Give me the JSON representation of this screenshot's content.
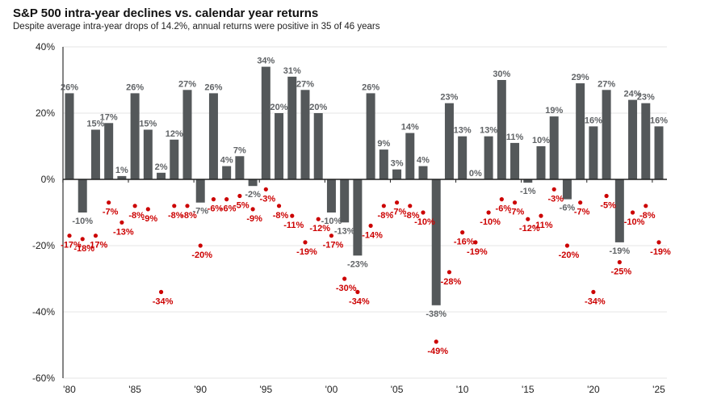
{
  "chart_data": {
    "type": "bar",
    "title": "S&P 500 intra-year declines vs. calendar year returns",
    "subtitle": "Despite average intra-year drops of 14.2%, annual returns were positive in 35 of 46 years",
    "x": [
      1980,
      1981,
      1982,
      1983,
      1984,
      1985,
      1986,
      1987,
      1988,
      1989,
      1990,
      1991,
      1992,
      1993,
      1994,
      1995,
      1996,
      1997,
      1998,
      1999,
      2000,
      2001,
      2002,
      2003,
      2004,
      2005,
      2006,
      2007,
      2008,
      2009,
      2010,
      2011,
      2012,
      2013,
      2014,
      2015,
      2016,
      2017,
      2018,
      2019,
      2020,
      2021,
      2022,
      2023,
      2024,
      2025
    ],
    "x_tick_labels": [
      "'80",
      "'85",
      "'90",
      "'95",
      "'00",
      "'05",
      "'10",
      "'15",
      "'20",
      "'25"
    ],
    "y_tick_labels": [
      "40%",
      "20%",
      "0%",
      "-20%",
      "-40%",
      "-60%"
    ],
    "ylim": [
      -60,
      40
    ],
    "grid": true,
    "series": [
      {
        "kind": "bar",
        "color": "#54585a",
        "values": [
          26,
          -10,
          15,
          17,
          1,
          26,
          15,
          2,
          12,
          27,
          -7,
          26,
          4,
          7,
          -2,
          34,
          20,
          31,
          27,
          20,
          -10,
          -13,
          -23,
          26,
          9,
          3,
          14,
          4,
          -38,
          23,
          13,
          0,
          13,
          30,
          11,
          -1,
          10,
          19,
          -6,
          29,
          16,
          27,
          -19,
          24,
          23,
          16
        ]
      },
      {
        "kind": "scatter",
        "color": "#cc0000",
        "values": [
          -17,
          -18,
          -17,
          -7,
          -13,
          -8,
          -9,
          -34,
          -8,
          -8,
          -20,
          -6,
          -6,
          -5,
          -9,
          -3,
          -8,
          -11,
          -19,
          -12,
          -17,
          -30,
          -34,
          -14,
          -8,
          -7,
          -8,
          -10,
          -49,
          -28,
          -16,
          -19,
          -10,
          -6,
          -7,
          -12,
          -11,
          -3,
          -20,
          -7,
          -34,
          -5,
          -25,
          -10,
          -8,
          -19
        ]
      }
    ]
  }
}
